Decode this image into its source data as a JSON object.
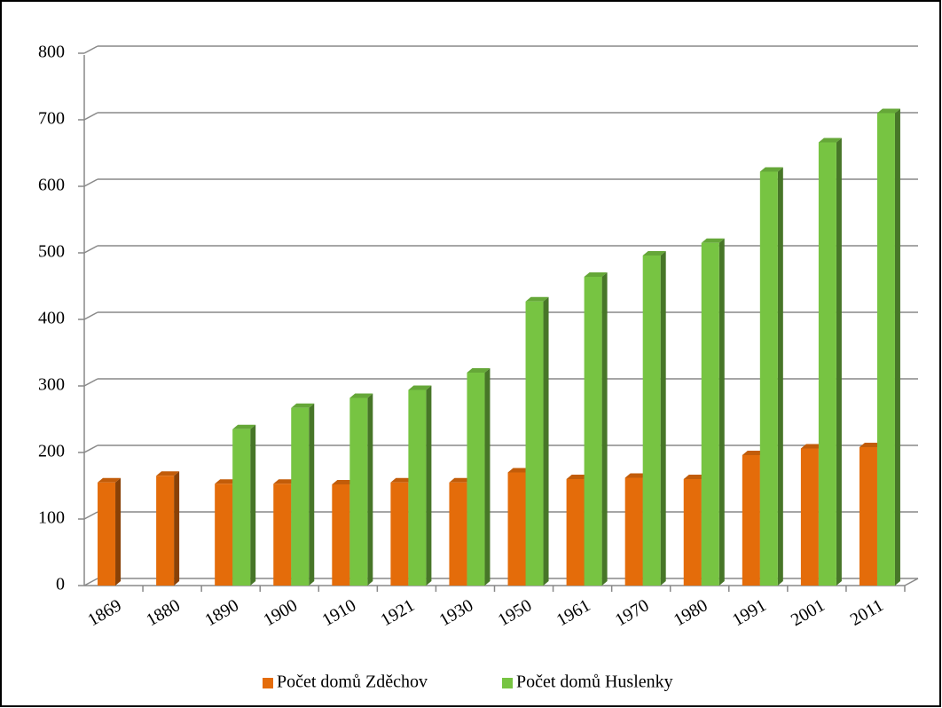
{
  "chart_data": {
    "type": "bar",
    "categories": [
      "1869",
      "1880",
      "1890",
      "1900",
      "1910",
      "1921",
      "1930",
      "1950",
      "1961",
      "1970",
      "1980",
      "1991",
      "2001",
      "2011"
    ],
    "series": [
      {
        "name": "Počet domů Zděchov",
        "color": "#e46c0a",
        "values": [
          155,
          165,
          153,
          153,
          152,
          155,
          155,
          170,
          160,
          162,
          160,
          196,
          206,
          208
        ]
      },
      {
        "name": "Počet domů Huslenky",
        "color": "#77c442",
        "values": [
          null,
          null,
          235,
          267,
          282,
          294,
          320,
          427,
          464,
          496,
          515,
          622,
          666,
          710
        ]
      }
    ],
    "ylim": [
      0,
      800
    ],
    "yticks": [
      0,
      100,
      200,
      300,
      400,
      500,
      600,
      700,
      800
    ],
    "grid": true,
    "legend": "bottom"
  }
}
